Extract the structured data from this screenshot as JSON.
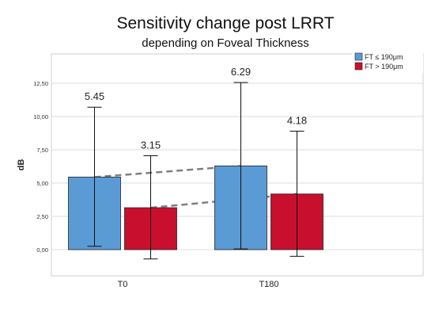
{
  "chart_data": {
    "type": "bar",
    "title": "Sensitivity change post LRRT",
    "subtitle": "depending on Foveal Thickness",
    "xlabel": "",
    "ylabel": "dB",
    "categories": [
      "T0",
      "T180"
    ],
    "series": [
      {
        "name": "FT ≤ 190μm",
        "color": "#5b9bd5",
        "values": [
          5.45,
          6.29
        ],
        "error_low": [
          0.25,
          0.05
        ],
        "error_high": [
          10.7,
          12.55
        ],
        "labels": [
          "5.45",
          "6.29"
        ]
      },
      {
        "name": "FT > 190μm",
        "color": "#c8102e",
        "values": [
          3.15,
          4.18
        ],
        "error_low": [
          -0.7,
          -0.5
        ],
        "error_high": [
          7.05,
          8.9
        ],
        "labels": [
          "3.15",
          "4.18"
        ]
      }
    ],
    "ylim": [
      -2.0,
      15.0
    ],
    "yticks": [
      0.0,
      2.5,
      5.0,
      7.5,
      10.0,
      12.5
    ],
    "ytick_labels": [
      "0,00",
      "2,50",
      "5,00",
      "7,50",
      "10,00",
      "12,50"
    ],
    "grid": true,
    "legend": "top-right",
    "trend_lines": "dashed connecting series means"
  }
}
